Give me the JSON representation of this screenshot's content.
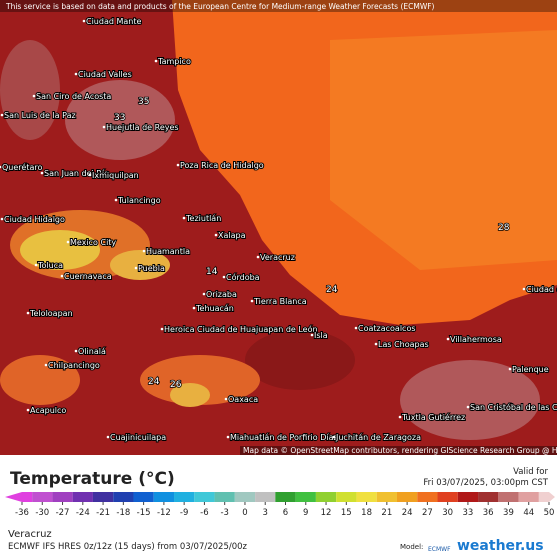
{
  "attribution": "This service is based on data and products of the European Centre for Medium-range Weather Forecasts (ECMWF)",
  "map_credit": "Map data © OpenStreetMap contributors, rendering GIScience Research Group @ Heidelberg University",
  "cities": [
    "Ciudad Mante",
    "Tampico",
    "Ciudad Valles",
    "San Ciro de Acosta",
    "San Luis de la Paz",
    "Huejutla de Reyes",
    "Querétaro",
    "San Juan del Río",
    "Ixmiquilpan",
    "Poza Rica de Hidalgo",
    "Tulancingo",
    "Ciudad Hidalgo",
    "Teziutlán",
    "Xalapa",
    "Mexico City",
    "Huamantla",
    "Toluca",
    "Cuernavaca",
    "Puebla",
    "Veracruz",
    "Córdoba",
    "Orizaba",
    "Tehuacán",
    "Tierra Blanca",
    "Teloloapan",
    "Heroica Ciudad de Huajuapan de León",
    "Coatzacoalcos",
    "Isla",
    "Las Choapas",
    "Villahermosa",
    "Ciudad del Carmen",
    "Olinalá",
    "Chilpancingo",
    "Palenque",
    "Oaxaca",
    "Acapulco",
    "San Cristóbal de las Casas",
    "Tuxtla Gutiérrez",
    "Cuajinicuilapa",
    "Miahuatlán de Porfirio Díaz",
    "Juchitán de Zaragoza"
  ],
  "contour_labels": [
    "35",
    "33",
    "14",
    "28",
    "24",
    "26",
    "24"
  ],
  "legend": {
    "title": "Temperature (°C)",
    "ticks": [
      -36,
      -30,
      -27,
      -24,
      -21,
      -18,
      -15,
      -12,
      -9,
      -6,
      -3,
      0,
      3,
      6,
      9,
      12,
      15,
      18,
      21,
      24,
      27,
      30,
      33,
      36,
      39,
      44,
      50
    ],
    "colors": [
      "#e040e0",
      "#c050d0",
      "#a040c0",
      "#7030b0",
      "#4030a0",
      "#2040b0",
      "#1060d0",
      "#1090e0",
      "#20b0e0",
      "#40c8d8",
      "#60c0b0",
      "#a0c8c0",
      "#c0c0c0",
      "#30a030",
      "#40c040",
      "#90d030",
      "#d0e030",
      "#f0e040",
      "#f0c030",
      "#f0a020",
      "#f07020",
      "#e04020",
      "#b01818",
      "#a03030",
      "#c07070",
      "#e0a0a0",
      "#f0d0d0"
    ]
  },
  "valid_label": "Valid for",
  "valid_time": "Fri 03/07/2025, 03:00pm CST",
  "location": "Veracruz",
  "model_run": "ECMWF IFS HRES 0z/12z (15 days) from 03/07/2025/00z",
  "model_label": "Model:",
  "model_name": "ECMWF",
  "brand": "weather.us"
}
